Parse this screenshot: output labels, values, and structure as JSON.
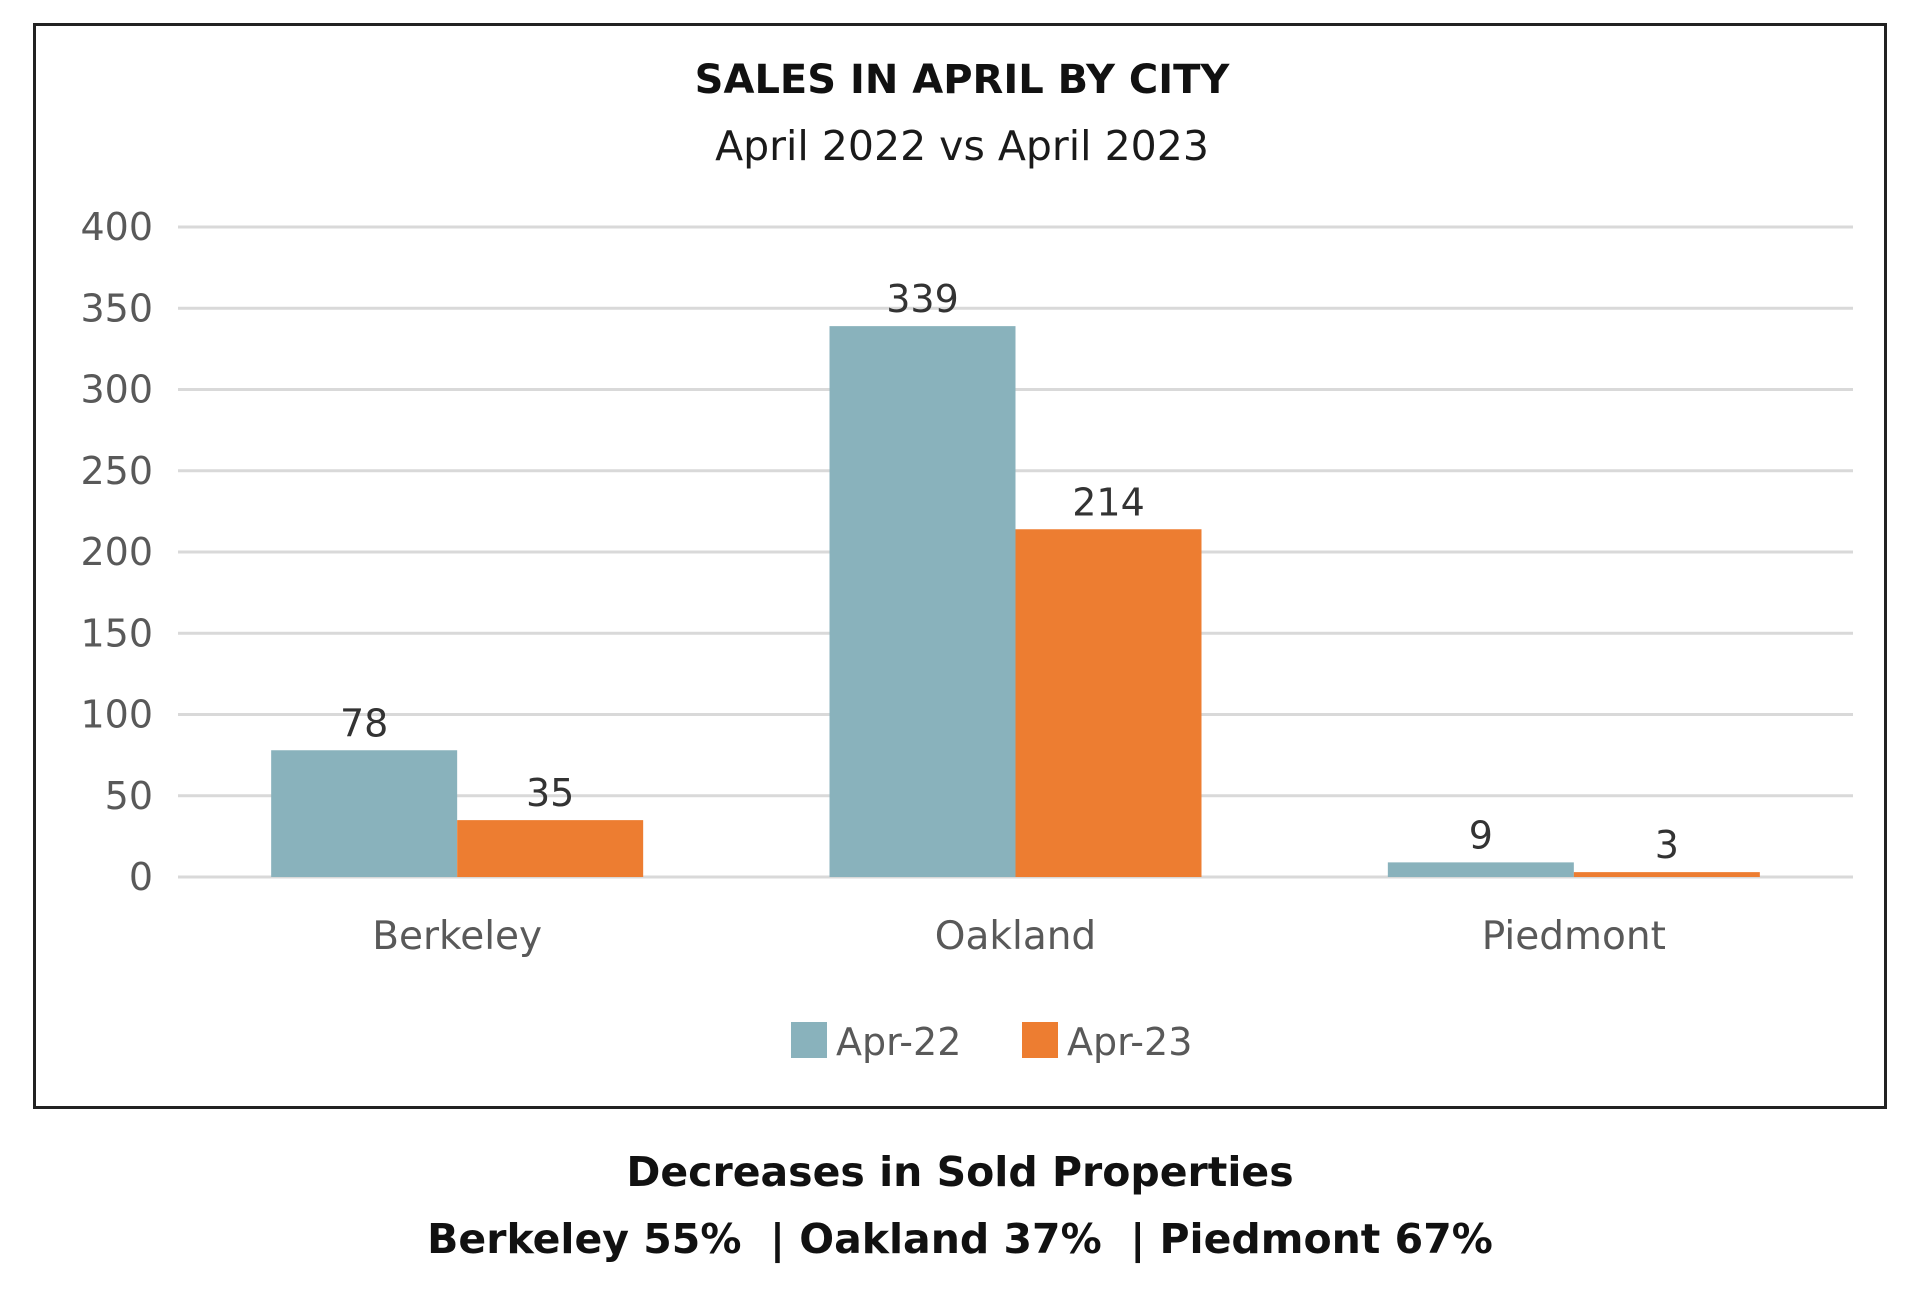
{
  "chart_data": {
    "type": "bar",
    "title": "SALES IN APRIL BY CITY",
    "subtitle": "April 2022 vs April 2023",
    "categories": [
      "Berkeley",
      "Oakland",
      "Piedmont"
    ],
    "series": [
      {
        "name": "Apr-22",
        "color": "#89b2bc",
        "values": [
          78,
          339,
          9
        ]
      },
      {
        "name": "Apr-23",
        "color": "#ed7d31",
        "values": [
          35,
          214,
          3
        ]
      }
    ],
    "xlabel": "",
    "ylabel": "",
    "ylim": [
      0,
      400
    ],
    "yticks": [
      "0",
      "50",
      "100",
      "150",
      "200",
      "250",
      "300",
      "350",
      "400"
    ],
    "grid": true,
    "legend_position": "bottom-center",
    "data_labels": true
  },
  "caption": {
    "title": "Decreases in Sold Properties",
    "detail": "Berkeley 55%  | Oakland 37%  | Piedmont 67%"
  },
  "colors": {
    "gridline": "#d9d9d9",
    "axis_text": "#595959",
    "frame": "#222222"
  }
}
